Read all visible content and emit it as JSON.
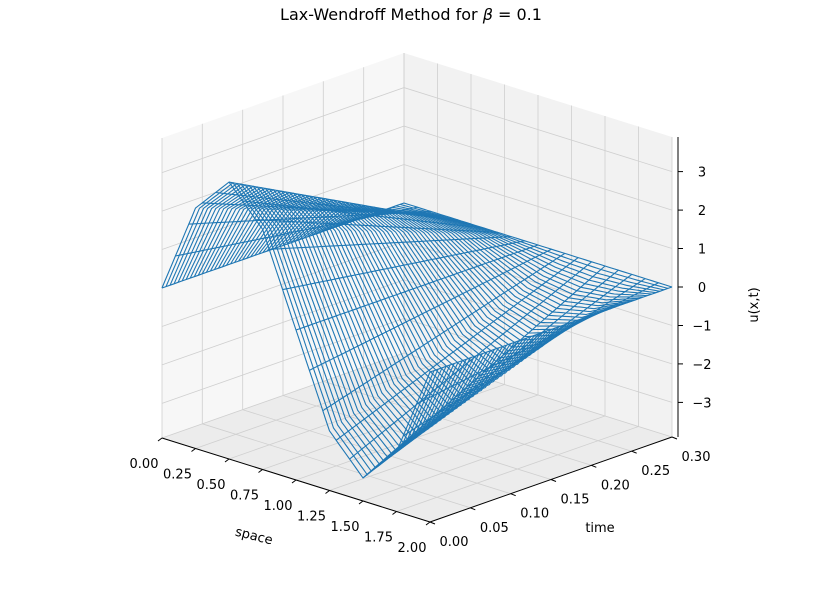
{
  "chart_data": {
    "type": "surface-wireframe-3d",
    "title": "Lax-Wendroff Method for β = 0.1",
    "title_parts": {
      "text": "Lax-Wendroff Method for ",
      "symbol": "β",
      "suffix": " = 0.1"
    },
    "xlabel": "space",
    "ylabel": "time",
    "zlabel": "u(x,t)",
    "xlim": [
      0.0,
      2.0
    ],
    "ylim": [
      0.0,
      0.3
    ],
    "zlim": [
      -3.9,
      3.9
    ],
    "x_ticks": [
      "0.00",
      "0.25",
      "0.50",
      "0.75",
      "1.00",
      "1.25",
      "1.50",
      "1.75",
      "2.00"
    ],
    "y_ticks": [
      "0.00",
      "0.05",
      "0.10",
      "0.15",
      "0.20",
      "0.25",
      "0.30"
    ],
    "z_ticks": [
      "−3",
      "−2",
      "−1",
      "0",
      "1",
      "2",
      "3"
    ],
    "series_color": "#1f77b4",
    "grid": true,
    "approx_surface": {
      "description_free_values": true,
      "t0_profile": {
        "x": [
          0.0,
          0.25,
          0.5,
          0.75,
          1.0,
          1.25,
          1.5,
          1.75,
          2.0
        ],
        "u": [
          0.0,
          2.35,
          3.3,
          2.35,
          0.0,
          -2.35,
          -3.3,
          -2.35,
          0.0
        ]
      },
      "t_end": 0.3,
      "u_end": 0.0
    }
  }
}
